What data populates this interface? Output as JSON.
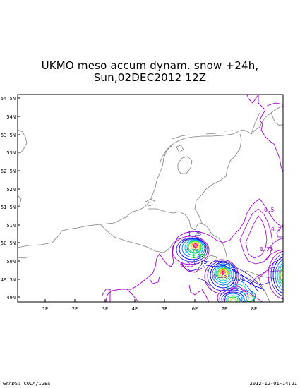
{
  "title": {
    "line1": "UKMO meso accum dynam. snow +24h,",
    "line2": "Sun,02DEC2012 12Z"
  },
  "footer": {
    "left": "GrADS: COLA/IGES",
    "right": "2012-12-01-14:21"
  },
  "axes": {
    "lat_labels": [
      "54.5N",
      "54N",
      "53.5N",
      "53N",
      "52.5N",
      "52N",
      "51.5N",
      "51N",
      "50.5N",
      "50N",
      "49.5N",
      "49N"
    ],
    "lon_labels": [
      "1E",
      "2E",
      "3E",
      "4E",
      "5E",
      "6E",
      "7E",
      "8E"
    ]
  },
  "contour_labels": [
    "1.25",
    "0.75",
    "1.75",
    "0.25",
    "0.5",
    "0.25",
    "0.75",
    "0.75",
    "1.25",
    "0.25",
    "1.75",
    "0.75"
  ],
  "colors": {
    "coast": "#808080",
    "purple": "#a000c8",
    "blue": "#0000ff",
    "cyan": "#00c8c8",
    "green": "#00dc00",
    "yellow": "#e6dc32",
    "orange": "#f08228",
    "red": "#f00000",
    "magenta": "#e000e0"
  }
}
